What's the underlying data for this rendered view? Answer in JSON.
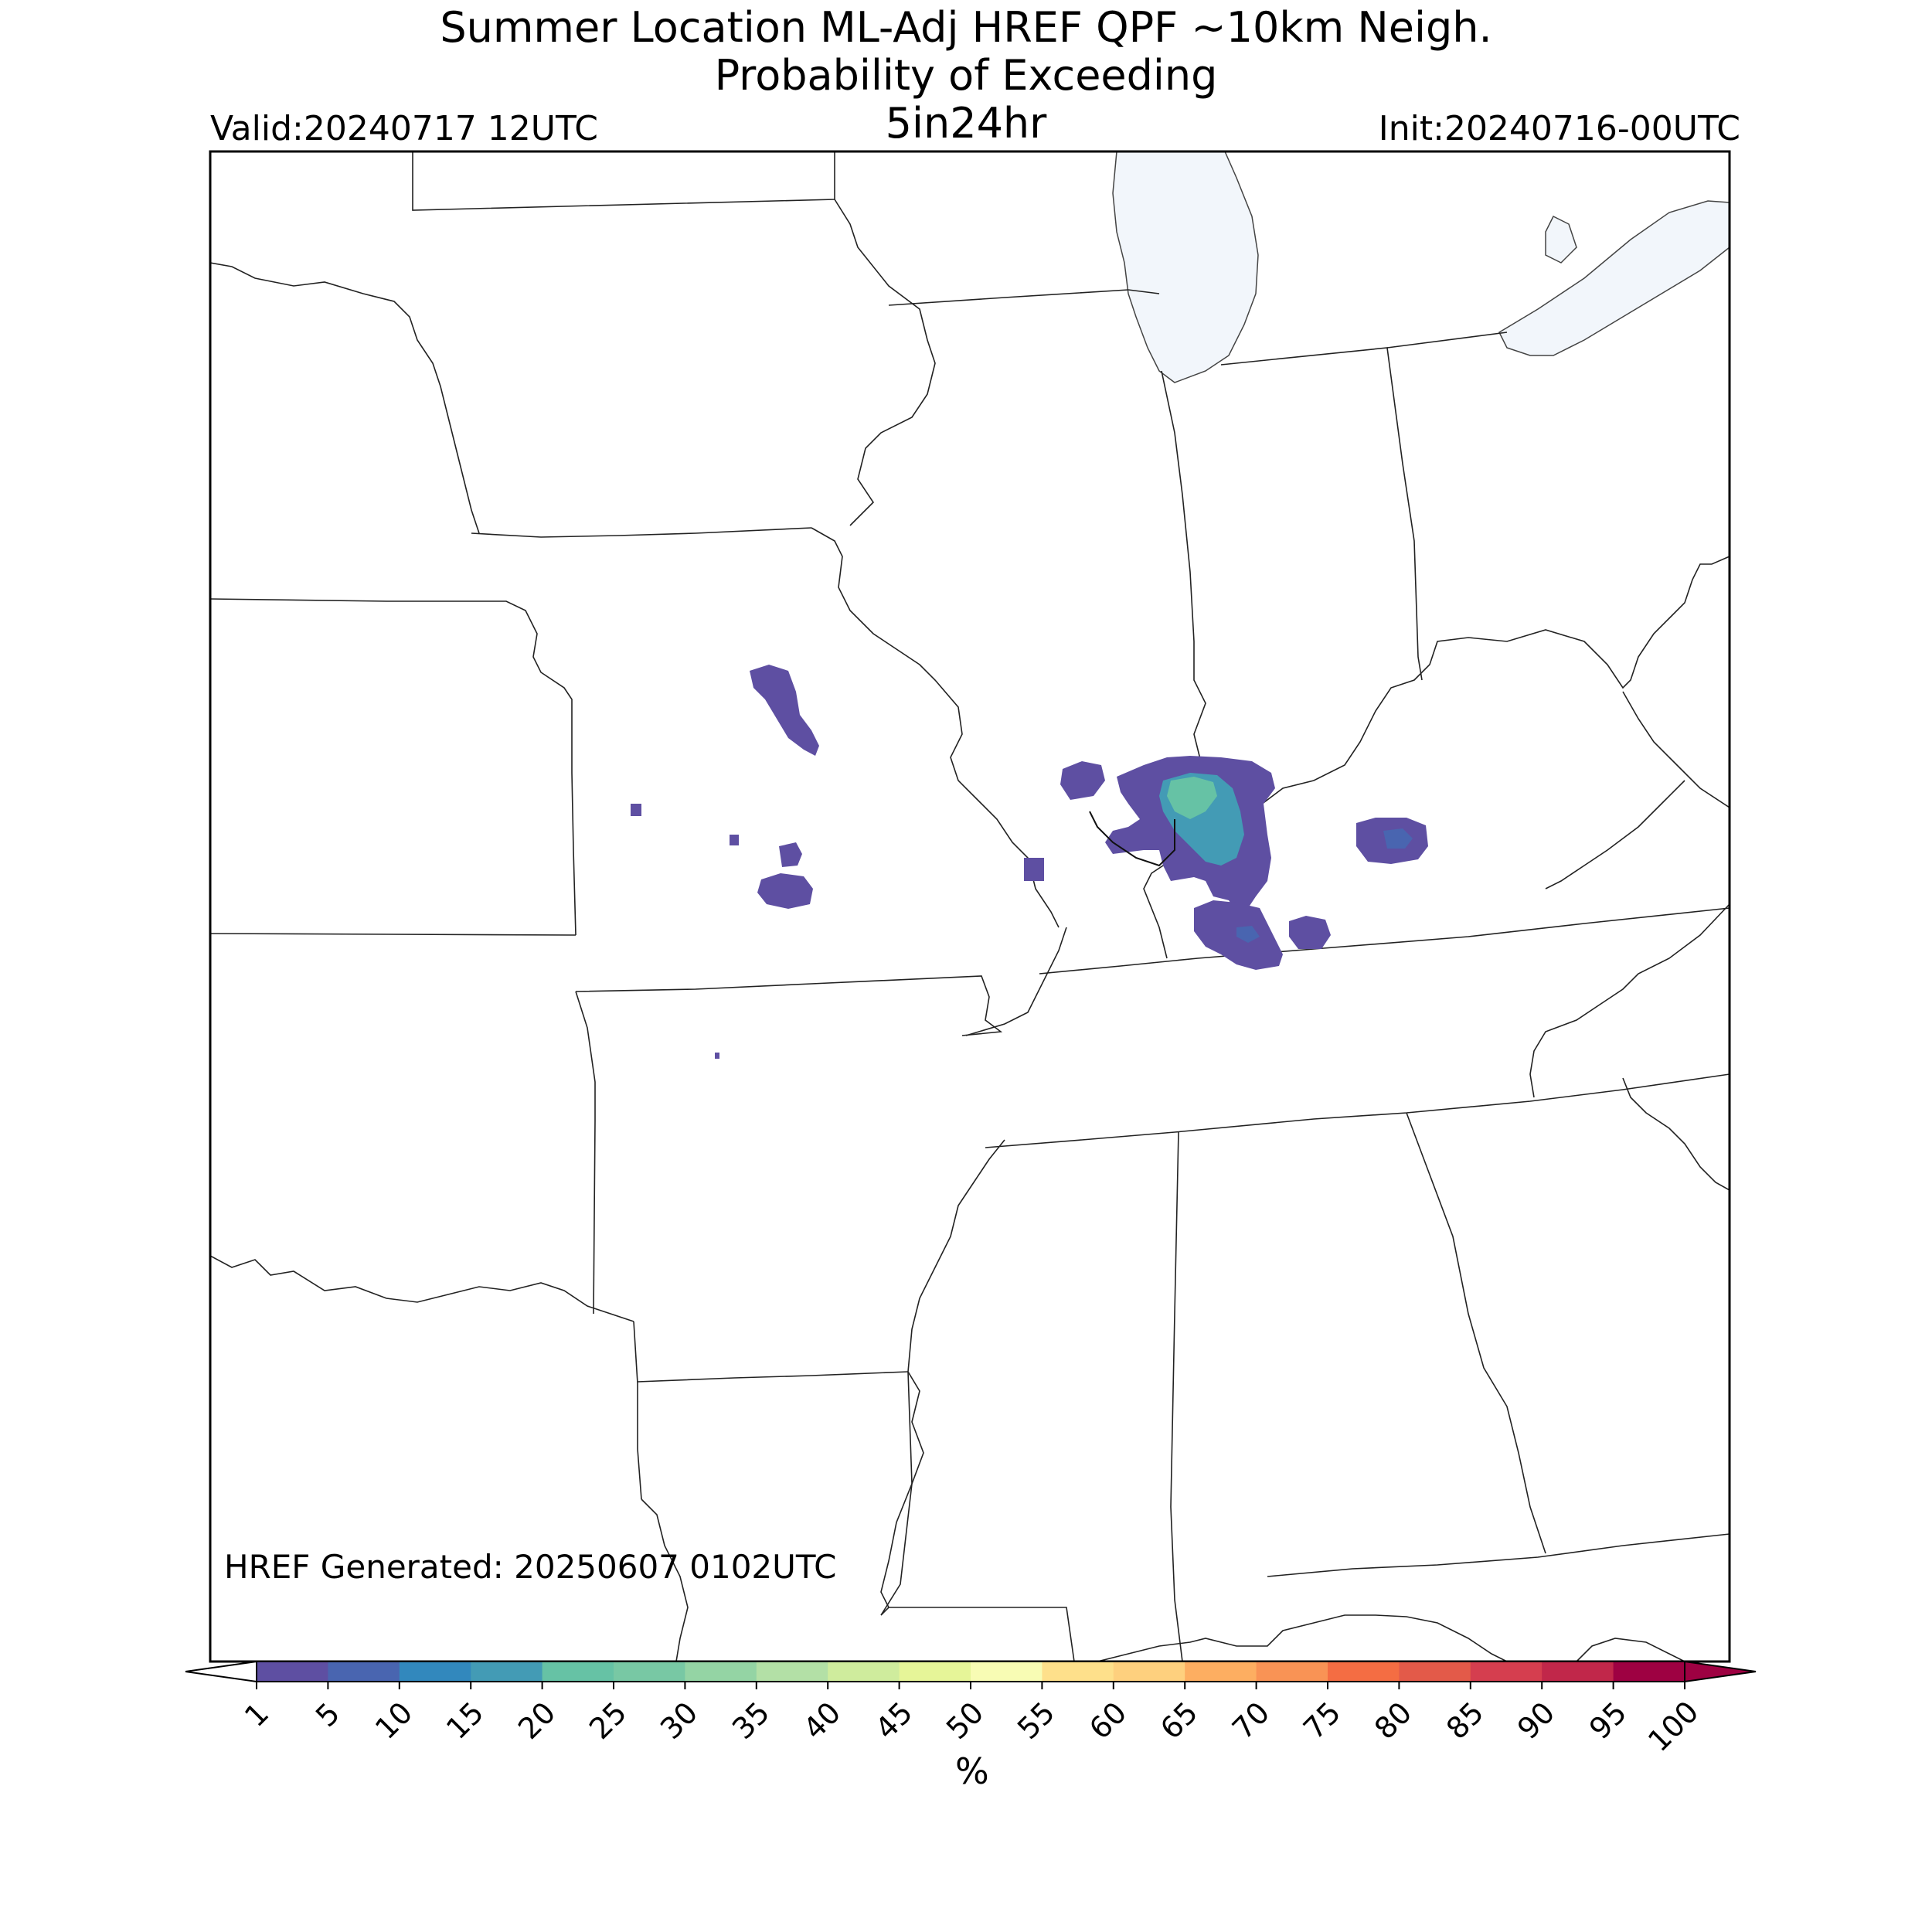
{
  "title": {
    "line1": "Summer Location ML-Adj HREF QPF ~10km Neigh.",
    "line2": "Probability of Exceeding",
    "line3": "5in24hr"
  },
  "valid": "Valid:20240717 12UTC",
  "init": "Init:20240716-00UTC",
  "generated": "HREF Generated: 20250607 0102UTC",
  "colorbar": {
    "unit": "%",
    "ticks": [
      "1",
      "5",
      "10",
      "15",
      "20",
      "25",
      "30",
      "35",
      "40",
      "45",
      "50",
      "55",
      "60",
      "65",
      "70",
      "75",
      "80",
      "85",
      "90",
      "95",
      "100"
    ],
    "colors": [
      "#5e4fa2",
      "#4965b0",
      "#3288bd",
      "#439bb5",
      "#66c2a5",
      "#78c8a4",
      "#94d4a4",
      "#b3e0a6",
      "#cfec9d",
      "#e6f598",
      "#f8fcb4",
      "#fee08b",
      "#fed07e",
      "#fdae61",
      "#f99355",
      "#f46d43",
      "#e35a49",
      "#d53e4f",
      "#c1274a",
      "#9e0142"
    ],
    "under_color": "#ffffff",
    "over_color": "#9e0142"
  }
}
